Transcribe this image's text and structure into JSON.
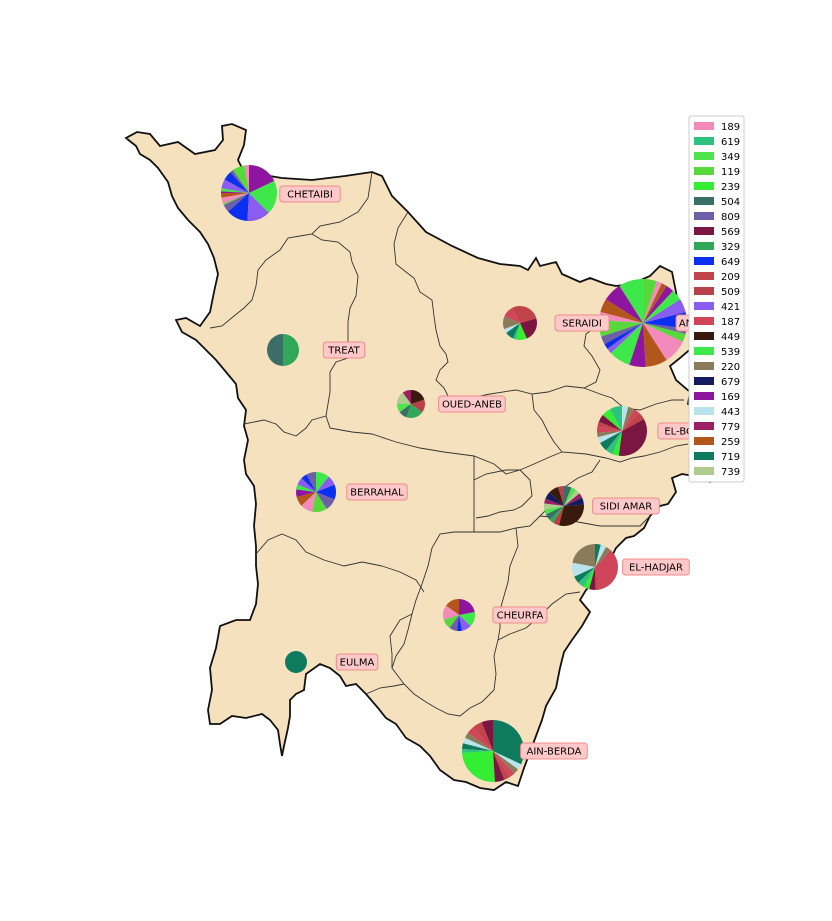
{
  "map": {
    "land_color": "#f5e1bd",
    "border_color": "#111111",
    "inner_border_color": "#333333"
  },
  "legend": {
    "items": [
      {
        "label": "189",
        "color": "#f28bbb"
      },
      {
        "label": "619",
        "color": "#2ec27e"
      },
      {
        "label": "349",
        "color": "#4ee44e"
      },
      {
        "label": "119",
        "color": "#57d93b"
      },
      {
        "label": "239",
        "color": "#33ee33"
      },
      {
        "label": "504",
        "color": "#3a6f67"
      },
      {
        "label": "809",
        "color": "#6e60a8"
      },
      {
        "label": "569",
        "color": "#7a1641"
      },
      {
        "label": "329",
        "color": "#2fa85a"
      },
      {
        "label": "649",
        "color": "#0a2ff0"
      },
      {
        "label": "209",
        "color": "#c0444a"
      },
      {
        "label": "509",
        "color": "#b9404a"
      },
      {
        "label": "421",
        "color": "#8a5cf0"
      },
      {
        "label": "187",
        "color": "#d0455a"
      },
      {
        "label": "449",
        "color": "#3a1a0c"
      },
      {
        "label": "539",
        "color": "#3fe84a"
      },
      {
        "label": "220",
        "color": "#8a7b5a"
      },
      {
        "label": "679",
        "color": "#141c60"
      },
      {
        "label": "169",
        "color": "#8e15a0"
      },
      {
        "label": "443",
        "color": "#b8e3ea"
      },
      {
        "label": "779",
        "color": "#9c1f64"
      },
      {
        "label": "259",
        "color": "#b3561c"
      },
      {
        "label": "719",
        "color": "#0e7a5e"
      },
      {
        "label": "739",
        "color": "#adcc8d"
      }
    ]
  },
  "communes": [
    {
      "name": "CHETAIBI",
      "values": [
        3,
        8,
        2,
        6,
        6,
        2,
        1,
        3,
        4,
        1,
        5,
        14,
        15,
        22,
        20
      ]
    },
    {
      "name": "TREAT",
      "values": [
        50,
        50
      ]
    },
    {
      "name": "SERAIDI",
      "values": [
        8,
        10,
        12,
        4,
        8,
        3,
        10,
        22,
        20
      ]
    },
    {
      "name": "ANNABA",
      "values": [
        9,
        7,
        5,
        3,
        6,
        3,
        2,
        2,
        8,
        6,
        8,
        9,
        3,
        2,
        6,
        5,
        4,
        3,
        2,
        2,
        5
      ]
    },
    {
      "name": "OUED-ANEB",
      "values": [
        10,
        15,
        10,
        10,
        20,
        15,
        20
      ]
    },
    {
      "name": "EL-BOUNI",
      "values": [
        8,
        6,
        5,
        3,
        4,
        3,
        4,
        6,
        5,
        4,
        35,
        5,
        4,
        4,
        4
      ]
    },
    {
      "name": "BERRAHAL",
      "values": [
        8,
        5,
        6,
        4,
        6,
        8,
        10,
        12,
        10,
        12,
        8,
        11
      ]
    },
    {
      "name": "SIDI AMAR",
      "values": [
        5,
        8,
        6,
        4,
        5,
        4,
        5,
        4,
        5,
        30,
        6,
        4,
        4,
        4,
        6
      ]
    },
    {
      "name": "EL-HADJAR",
      "values": [
        22,
        10,
        5,
        5,
        4,
        4,
        3,
        35,
        4,
        4,
        4
      ]
    },
    {
      "name": "CHEURFA",
      "values": [
        15,
        15,
        10,
        8,
        5,
        10,
        15,
        22
      ]
    },
    {
      "name": "EULMA",
      "values": [
        100
      ]
    },
    {
      "name": "AIN-BERDA",
      "values": [
        6,
        5,
        4,
        3,
        3,
        3,
        2,
        25,
        5,
        3,
        3,
        3,
        3,
        32
      ]
    }
  ]
}
